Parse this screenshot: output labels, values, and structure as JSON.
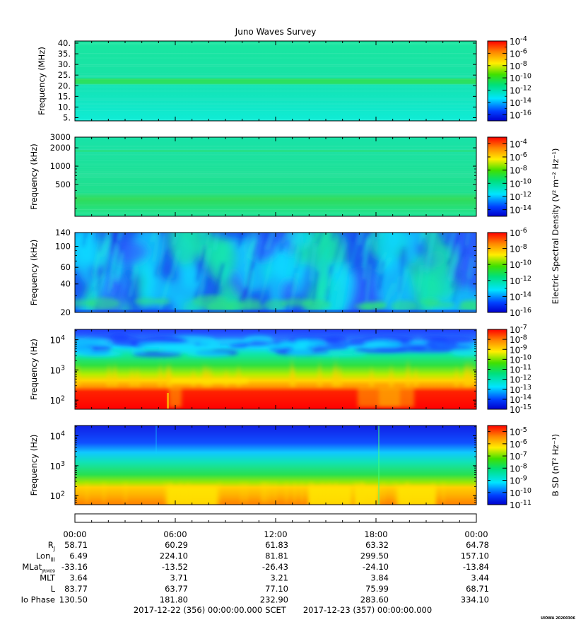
{
  "title": "Juno Waves Survey",
  "stamp": "UIOWA 20200306",
  "colors": {
    "low": "#0000cc",
    "mid_low": "#00e5ff",
    "mid": "#00e07a",
    "mid_high": "#ffee00",
    "high": "#ff0000"
  },
  "chart_data": [
    {
      "type": "heatmap",
      "ylabel": "Frequency (MHz)",
      "y_scale": "linear",
      "ylim": [
        3.5,
        41
      ],
      "yticks": [
        {
          "v": 40,
          "label": "40."
        },
        {
          "v": 35,
          "label": "35."
        },
        {
          "v": 30,
          "label": "30."
        },
        {
          "v": 25,
          "label": "25."
        },
        {
          "v": 20,
          "label": "20."
        },
        {
          "v": 15,
          "label": "15."
        },
        {
          "v": 10,
          "label": "10."
        },
        {
          "v": 5,
          "label": "5."
        }
      ],
      "colorbar": {
        "label": "",
        "range_exp": [
          -17,
          -4
        ],
        "ticks": [
          {
            "base": "10",
            "exp": "-4",
            "v": -4
          },
          {
            "base": "10",
            "exp": "-6",
            "v": -6
          },
          {
            "base": "10",
            "exp": "-8",
            "v": -8
          },
          {
            "base": "10",
            "exp": "-10",
            "v": -10
          },
          {
            "base": "10",
            "exp": "-12",
            "v": -12
          },
          {
            "base": "10",
            "exp": "-14",
            "v": -14
          },
          {
            "base": "10",
            "exp": "-16",
            "v": -16
          }
        ]
      }
    },
    {
      "type": "heatmap",
      "ylabel": "Frequency (kHz)",
      "y_scale": "log",
      "ylim": [
        150,
        3000
      ],
      "yticks": [
        {
          "v": 3000,
          "label": "3000"
        },
        {
          "v": 2000,
          "label": "2000"
        },
        {
          "v": 1000,
          "label": "1000"
        },
        {
          "v": 500,
          "label": "500"
        }
      ],
      "colorbar": {
        "label": "Electric Spectral Density (V² m⁻² Hz⁻¹)",
        "range_exp": [
          -15,
          -3
        ],
        "ticks": [
          {
            "base": "10",
            "exp": "-4",
            "v": -4
          },
          {
            "base": "10",
            "exp": "-6",
            "v": -6
          },
          {
            "base": "10",
            "exp": "-8",
            "v": -8
          },
          {
            "base": "10",
            "exp": "-10",
            "v": -10
          },
          {
            "base": "10",
            "exp": "-12",
            "v": -12
          },
          {
            "base": "10",
            "exp": "-14",
            "v": -14
          }
        ]
      }
    },
    {
      "type": "heatmap",
      "ylabel": "Frequency (kHz)",
      "y_scale": "log",
      "ylim": [
        20,
        140
      ],
      "yticks": [
        {
          "v": 140,
          "label": "140"
        },
        {
          "v": 100,
          "label": "100"
        },
        {
          "v": 60,
          "label": "60"
        },
        {
          "v": 40,
          "label": "40"
        },
        {
          "v": 20,
          "label": "20"
        }
      ],
      "colorbar": {
        "label": "",
        "range_exp": [
          -16,
          -6
        ],
        "ticks": [
          {
            "base": "10",
            "exp": "-6",
            "v": -6
          },
          {
            "base": "10",
            "exp": "-8",
            "v": -8
          },
          {
            "base": "10",
            "exp": "-10",
            "v": -10
          },
          {
            "base": "10",
            "exp": "-12",
            "v": -12
          },
          {
            "base": "10",
            "exp": "-14",
            "v": -14
          },
          {
            "base": "10",
            "exp": "-16",
            "v": -16
          }
        ]
      }
    },
    {
      "type": "heatmap",
      "ylabel": "Frequency (Hz)",
      "y_scale": "log",
      "ylim": [
        50,
        22000
      ],
      "yticks": [
        {
          "v": 10000,
          "base": "10",
          "exp": "4"
        },
        {
          "v": 1000,
          "base": "10",
          "exp": "3"
        },
        {
          "v": 100,
          "base": "10",
          "exp": "2"
        }
      ],
      "colorbar": {
        "label": "",
        "range_exp": [
          -15,
          -7
        ],
        "ticks": [
          {
            "base": "10",
            "exp": "-7",
            "v": -7
          },
          {
            "base": "10",
            "exp": "-8",
            "v": -8
          },
          {
            "base": "10",
            "exp": "-9",
            "v": -9
          },
          {
            "base": "10",
            "exp": "-10",
            "v": -10
          },
          {
            "base": "10",
            "exp": "-11",
            "v": -11
          },
          {
            "base": "10",
            "exp": "-12",
            "v": -12
          },
          {
            "base": "10",
            "exp": "-13",
            "v": -13
          },
          {
            "base": "10",
            "exp": "-14",
            "v": -14
          },
          {
            "base": "10",
            "exp": "-15",
            "v": -15
          }
        ]
      }
    },
    {
      "type": "heatmap",
      "ylabel": "Frequency (Hz)",
      "y_scale": "log",
      "ylim": [
        50,
        22000
      ],
      "yticks": [
        {
          "v": 10000,
          "base": "10",
          "exp": "4"
        },
        {
          "v": 1000,
          "base": "10",
          "exp": "3"
        },
        {
          "v": 100,
          "base": "10",
          "exp": "2"
        }
      ],
      "colorbar": {
        "label": "B SD (nT² Hz⁻¹)",
        "range_exp": [
          -11,
          -4.5
        ],
        "ticks": [
          {
            "base": "10",
            "exp": "-5",
            "v": -5
          },
          {
            "base": "10",
            "exp": "-6",
            "v": -6
          },
          {
            "base": "10",
            "exp": "-7",
            "v": -7
          },
          {
            "base": "10",
            "exp": "-8",
            "v": -8
          },
          {
            "base": "10",
            "exp": "-9",
            "v": -9
          },
          {
            "base": "10",
            "exp": "-10",
            "v": -10
          },
          {
            "base": "10",
            "exp": "-11",
            "v": -11
          }
        ]
      }
    }
  ],
  "time_axis": {
    "hours_range": [
      0,
      24
    ],
    "tick_labels": [
      {
        "h": 0,
        "label": "00:00"
      },
      {
        "h": 6,
        "label": "06:00"
      },
      {
        "h": 12,
        "label": "12:00"
      },
      {
        "h": 18,
        "label": "18:00"
      },
      {
        "h": 24,
        "label": "00:00"
      }
    ]
  },
  "ephemeris": [
    {
      "name": "R",
      "sub": "J",
      "values": [
        "58.71",
        "60.29",
        "61.83",
        "63.32",
        "64.78"
      ]
    },
    {
      "name": "Lon",
      "sub": "III",
      "values": [
        "6.49",
        "224.10",
        "81.81",
        "299.50",
        "157.10"
      ]
    },
    {
      "name": "MLat",
      "sub": "JRM09",
      "values": [
        "-33.16",
        "-13.52",
        "-26.43",
        "-24.10",
        "-13.84"
      ]
    },
    {
      "name": "MLT",
      "sub": "",
      "values": [
        "3.64",
        "3.71",
        "3.21",
        "3.84",
        "3.44"
      ]
    },
    {
      "name": "L",
      "sub": "",
      "values": [
        "83.77",
        "63.77",
        "77.10",
        "75.99",
        "68.71"
      ]
    },
    {
      "name": "Io Phase",
      "sub": "",
      "values": [
        "130.50",
        "181.80",
        "232.90",
        "283.60",
        "334.10"
      ]
    }
  ],
  "footer": {
    "start": "2017-12-22 (356) 00:00:00.000",
    "mid": "SCET",
    "end": "2017-12-23 (357) 00:00:00.000"
  }
}
